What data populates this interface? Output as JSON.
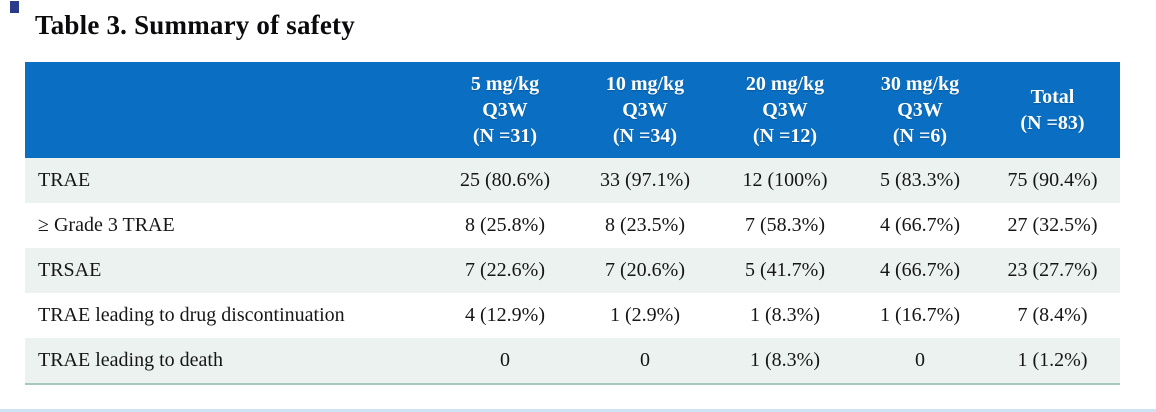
{
  "title": "Table 3. Summary of safety",
  "table": {
    "columns": [
      {
        "lines": [
          "5 mg/kg",
          "Q3W",
          "(N =31)"
        ]
      },
      {
        "lines": [
          "10 mg/kg",
          "Q3W",
          "(N =34)"
        ]
      },
      {
        "lines": [
          "20 mg/kg",
          "Q3W",
          "(N =12)"
        ]
      },
      {
        "lines": [
          "30 mg/kg",
          "Q3W",
          "(N =6)"
        ]
      },
      {
        "lines": [
          "Total",
          "(N =83)"
        ]
      }
    ],
    "rows": [
      {
        "label": "TRAE",
        "values": [
          "25 (80.6%)",
          "33 (97.1%)",
          "12 (100%)",
          "5 (83.3%)",
          "75 (90.4%)"
        ]
      },
      {
        "label": "≥ Grade 3 TRAE",
        "values": [
          "8 (25.8%)",
          "8 (23.5%)",
          "7 (58.3%)",
          "4 (66.7%)",
          "27 (32.5%)"
        ]
      },
      {
        "label": "TRSAE",
        "values": [
          "7 (22.6%)",
          "7 (20.6%)",
          "5 (41.7%)",
          "4 (66.7%)",
          "23 (27.7%)"
        ]
      },
      {
        "label": "TRAE leading to drug discontinuation",
        "values": [
          "4 (12.9%)",
          "1 (2.9%)",
          "1 (8.3%)",
          "1 (16.7%)",
          "7 (8.4%)"
        ]
      },
      {
        "label": "TRAE leading to death",
        "values": [
          "0",
          "0",
          "1 (8.3%)",
          "0",
          "1 (1.2%)"
        ]
      }
    ]
  },
  "colors": {
    "header_background": "#0a6fc2",
    "header_text": "#ffffff",
    "alternate_row_tint": "#ecf2ef",
    "table_bottom_rule": "#a6c8c1",
    "page_bottom_rule": "#cfe3f5",
    "edge_mark": "#2c3a8c",
    "title_text": "#0b0b0d"
  }
}
